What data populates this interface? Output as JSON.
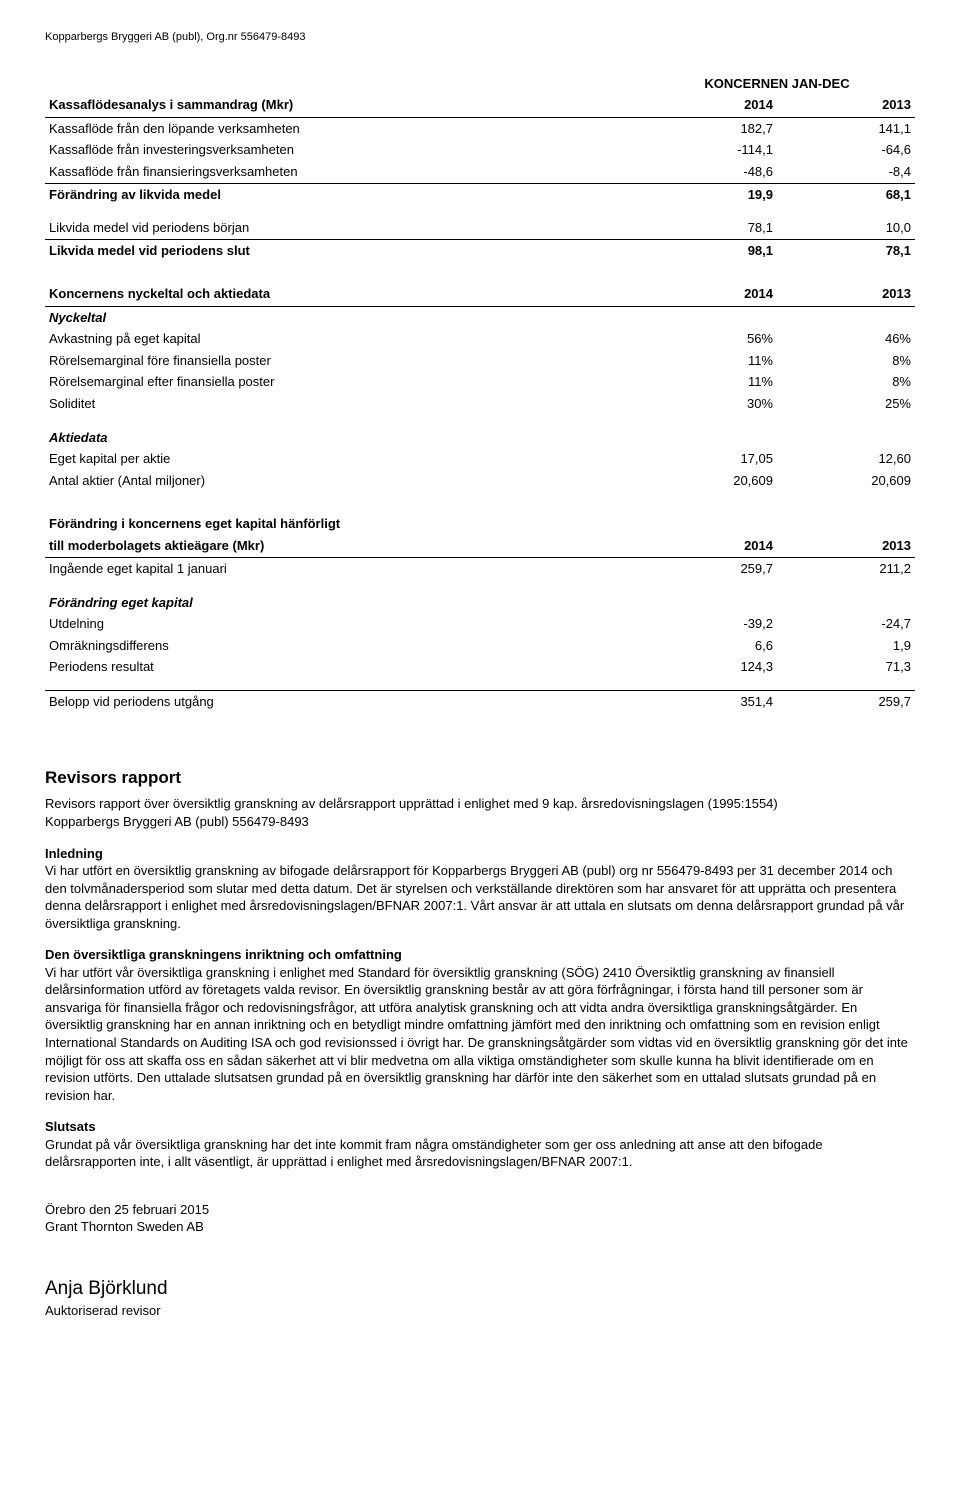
{
  "header": "Kopparbergs Bryggeri AB (publ), Org.nr 556479-8493",
  "tablesCommon": {
    "koncLabel": "KONCERNEN JAN-DEC",
    "col1": "2014",
    "col2": "2013"
  },
  "cashflow": {
    "title": "Kassaflödesanalys i sammandrag (Mkr)",
    "rows": [
      {
        "label": "Kassaflöde från den löpande verksamheten",
        "v1": "182,7",
        "v2": "141,1"
      },
      {
        "label": "Kassaflöde från investeringsverksamheten",
        "v1": "-114,1",
        "v2": "-64,6"
      },
      {
        "label": "Kassaflöde från finansieringsverksamheten",
        "v1": "-48,6",
        "v2": "-8,4"
      }
    ],
    "sum": {
      "label": "Förändring av likvida medel",
      "v1": "19,9",
      "v2": "68,1"
    },
    "liq1": {
      "label": "Likvida medel vid periodens början",
      "v1": "78,1",
      "v2": "10,0"
    },
    "liq2": {
      "label": "Likvida medel vid periodens slut",
      "v1": "98,1",
      "v2": "78,1"
    }
  },
  "keyfig": {
    "title": "Koncernens nyckeltal och aktiedata",
    "nyckeltalLabel": "Nyckeltal",
    "nyckeltal": [
      {
        "label": "Avkastning på eget kapital",
        "v1": "56%",
        "v2": "46%"
      },
      {
        "label": "Rörelsemarginal före finansiella poster",
        "v1": "11%",
        "v2": "8%"
      },
      {
        "label": "Rörelsemarginal efter finansiella poster",
        "v1": "11%",
        "v2": "8%"
      },
      {
        "label": "Soliditet",
        "v1": "30%",
        "v2": "25%"
      }
    ],
    "aktiedataLabel": "Aktiedata",
    "aktiedata": [
      {
        "label": "Eget kapital per aktie",
        "v1": "17,05",
        "v2": "12,60"
      },
      {
        "label": "Antal aktier (Antal miljoner)",
        "v1": "20,609",
        "v2": "20,609"
      }
    ]
  },
  "equity": {
    "titleLine1": "Förändring i koncernens eget kapital hänförligt",
    "titleLine2": "till moderbolagets aktieägare (Mkr)",
    "open": {
      "label": "Ingående eget kapital 1 januari",
      "v1": "259,7",
      "v2": "211,2"
    },
    "changeLabel": "Förändring eget kapital",
    "changes": [
      {
        "label": "Utdelning",
        "v1": "-39,2",
        "v2": "-24,7"
      },
      {
        "label": "Omräkningsdifferens",
        "v1": "6,6",
        "v2": "1,9"
      },
      {
        "label": "Periodens resultat",
        "v1": "124,3",
        "v2": "71,3"
      }
    ],
    "close": {
      "label": "Belopp vid periodens utgång",
      "v1": "351,4",
      "v2": "259,7"
    }
  },
  "report": {
    "heading": "Revisors rapport",
    "introLine1": "Revisors rapport över översiktlig granskning av delårsrapport upprättad i enlighet med 9 kap. årsredovisningslagen (1995:1554)",
    "introLine2": "Kopparbergs Bryggeri AB (publ) 556479-8493",
    "inledningLabel": "Inledning",
    "inledningText": "Vi har utfört en översiktlig granskning av bifogade delårsrapport för Kopparbergs Bryggeri AB (publ) org nr 556479-8493 per 31 december 2014 och den tolvmånadersperiod som slutar med detta datum. Det är styrelsen och verkställande direktören som har ansvaret för att upprätta och presentera denna delårsrapport i enlighet med årsredovisningslagen/BFNAR 2007:1. Vårt ansvar är att uttala en slutsats om denna delårsrapport grundad på vår översiktliga granskning.",
    "scopeLabel": "Den översiktliga granskningens inriktning och omfattning",
    "scopeText": "Vi har utfört vår översiktliga granskning i enlighet med Standard för översiktlig granskning (SÖG) 2410 Översiktlig granskning av finansiell delårsinformation utförd av företagets valda revisor. En översiktlig granskning består av att göra förfrågningar, i första hand till personer som är ansvariga för finansiella frågor och redovisningsfrågor, att utföra analytisk granskning och att vidta andra översiktliga granskningsåtgärder. En översiktlig granskning har en annan inriktning och en betydligt mindre omfattning jämfört med den inriktning och omfattning som en revision enligt International Standards on Auditing ISA och god revisionssed i övrigt har. De granskningsåtgärder som vidtas vid en översiktlig granskning gör det inte möjligt för oss att skaffa oss en sådan säkerhet att vi blir medvetna om alla viktiga omständigheter som skulle kunna ha blivit identifierade om en revision utförts. Den uttalade slutsatsen grundad på en översiktlig granskning har därför inte den säkerhet som en uttalad slutsats grundad på en revision har.",
    "slutsatsLabel": "Slutsats",
    "slutsatsText": "Grundat på vår översiktliga granskning har det inte kommit fram några omständigheter som ger oss anledning att anse att den bifogade delårsrapporten inte, i allt väsentligt, är upprättad i enlighet med årsredovisningslagen/BFNAR 2007:1.",
    "placeDate": "Örebro den 25 februari 2015",
    "firm": "Grant Thornton Sweden AB",
    "sigName": "Anja Björklund",
    "sigTitle": "Auktoriserad revisor"
  }
}
